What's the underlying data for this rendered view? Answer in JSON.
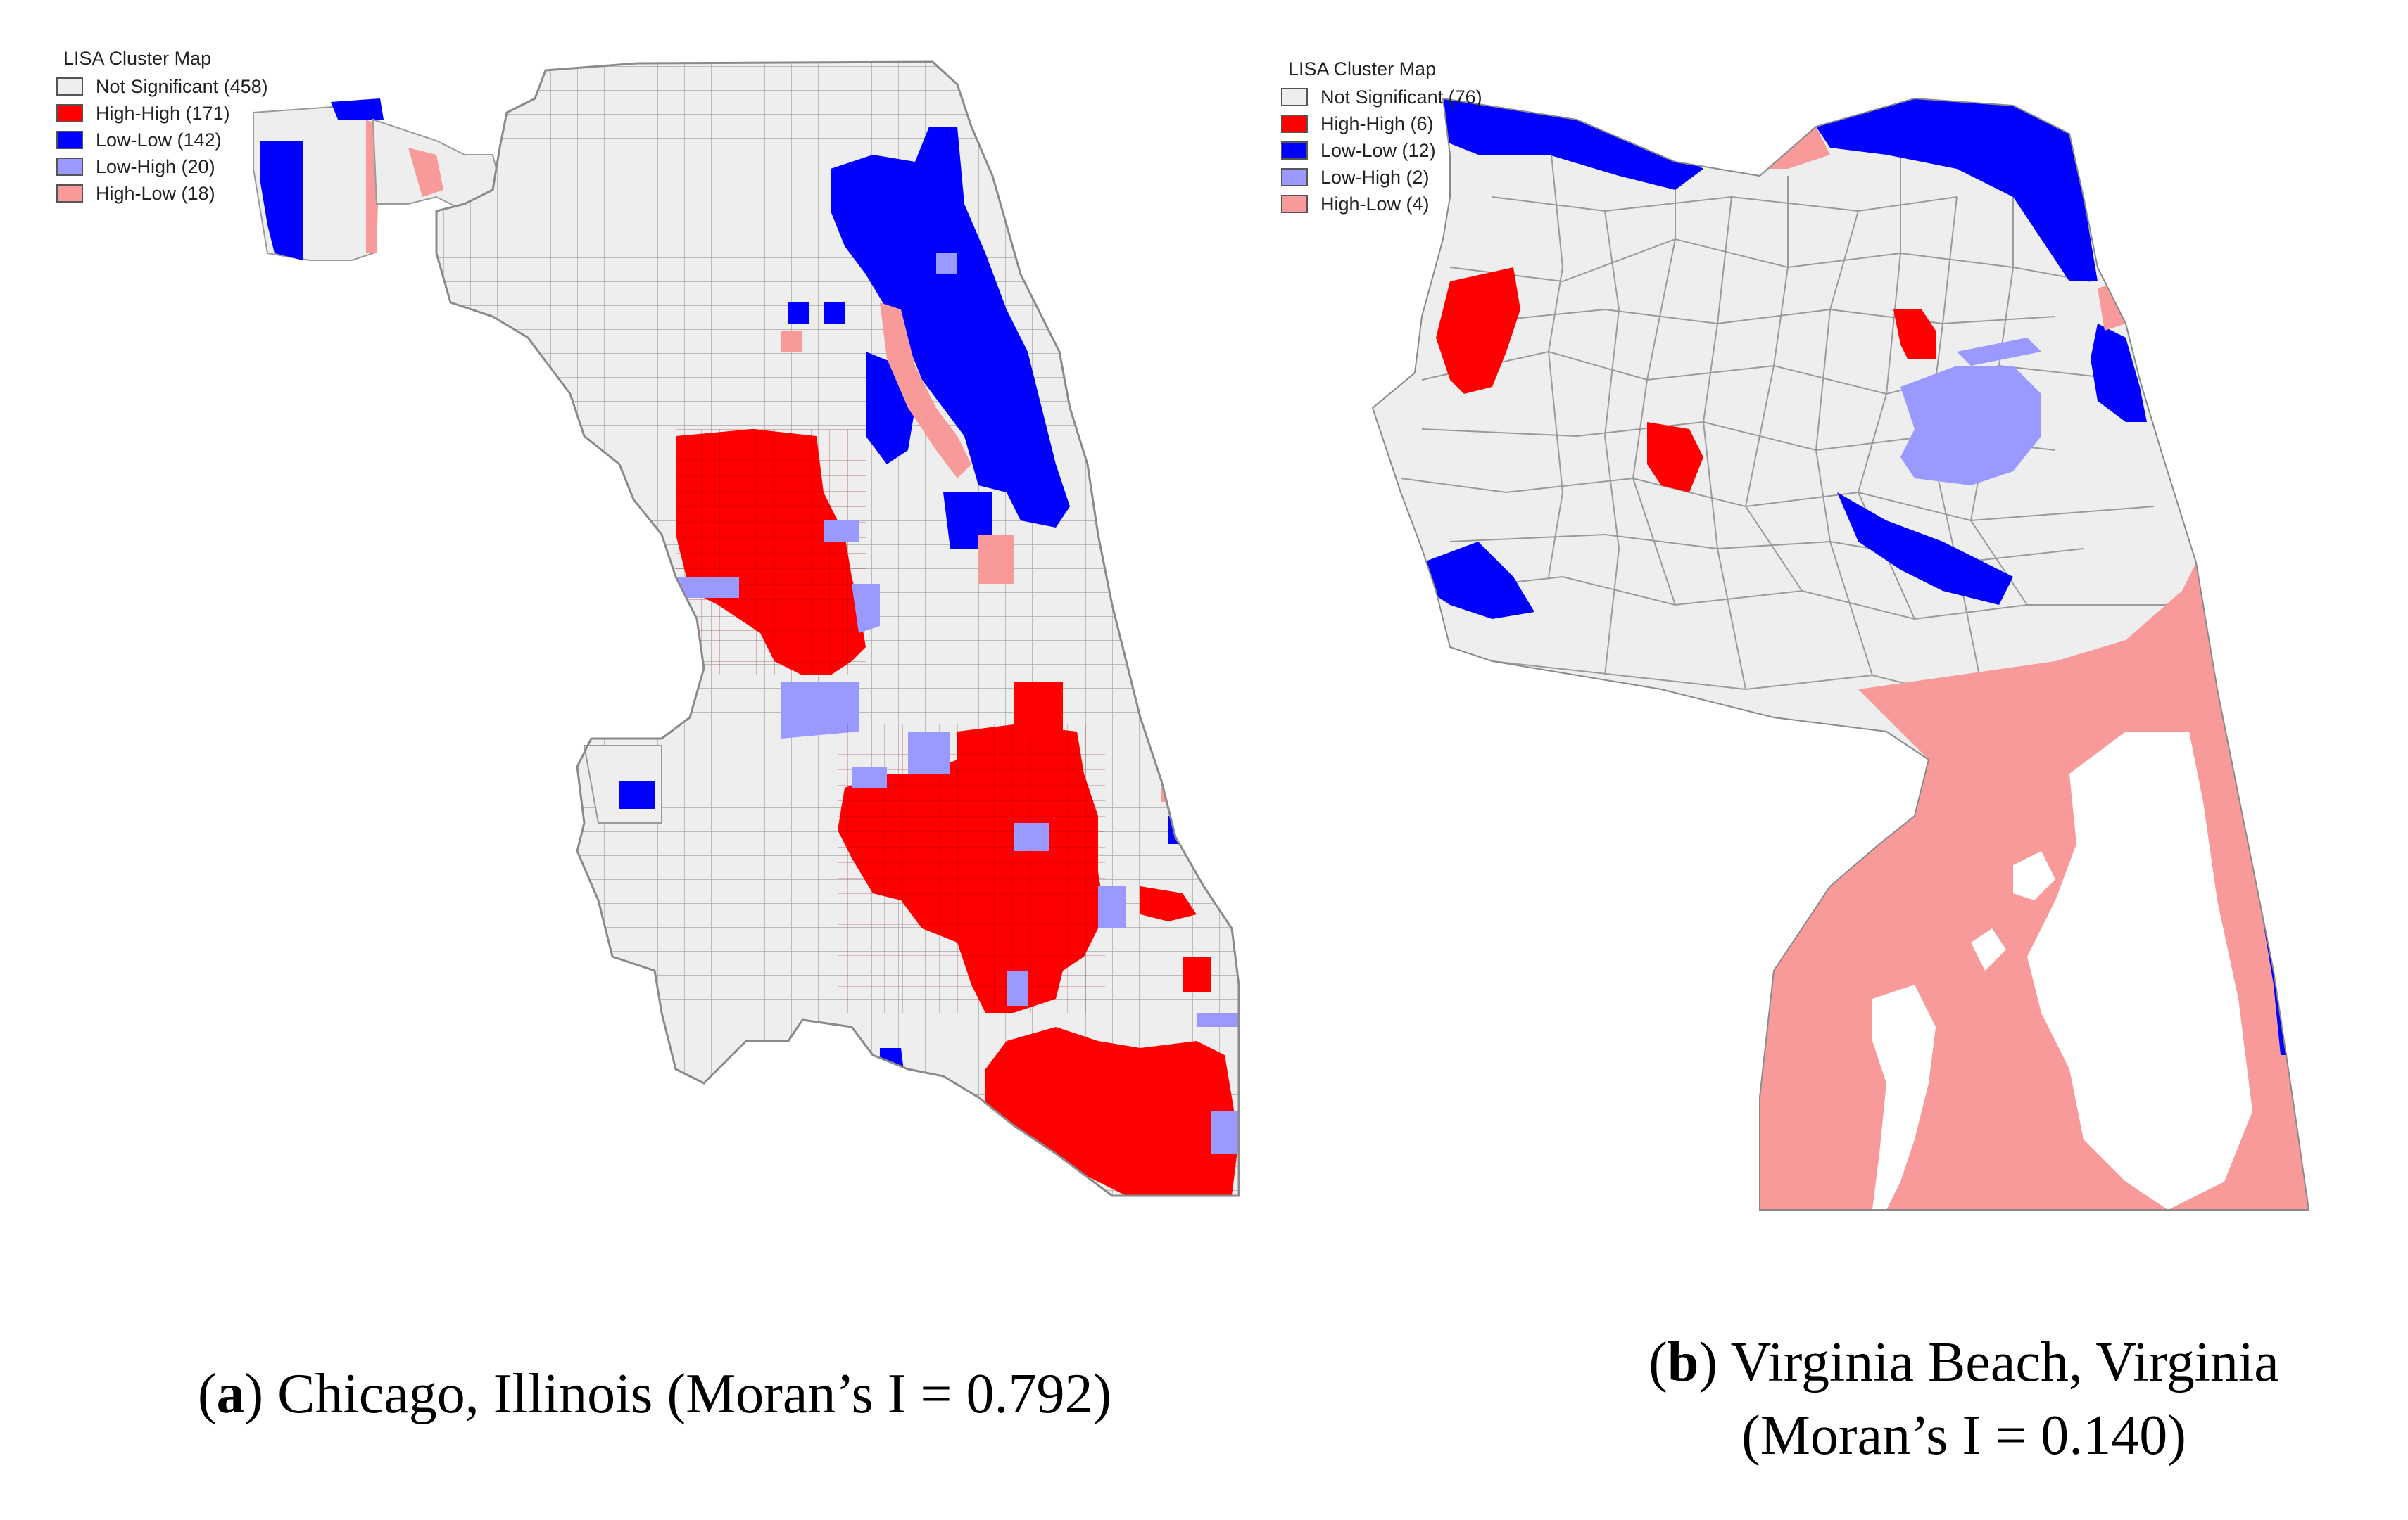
{
  "legend_colors": {
    "not_significant": "#eeeeee",
    "high_high": "#ff0000",
    "low_low": "#0000ff",
    "low_high": "#9999ff",
    "high_low": "#f99a9a"
  },
  "panel_a": {
    "legend_title": "LISA Cluster Map",
    "legend": [
      {
        "key": "not_significant",
        "label": "Not Significant (458)",
        "color": "#eeeeee"
      },
      {
        "key": "high_high",
        "label": "High-High (171)",
        "color": "#ff0000"
      },
      {
        "key": "low_low",
        "label": "Low-Low (142)",
        "color": "#0000ff"
      },
      {
        "key": "low_high",
        "label": "Low-High (20)",
        "color": "#9999ff"
      },
      {
        "key": "high_low",
        "label": "High-Low (18)",
        "color": "#f99a9a"
      }
    ],
    "caption_letter": "a",
    "caption_text": "Chicago, Illinois (Moran’s I = 0.792)"
  },
  "panel_b": {
    "legend_title": "LISA Cluster Map",
    "legend": [
      {
        "key": "not_significant",
        "label": "Not Significant (76)",
        "color": "#eeeeee"
      },
      {
        "key": "high_high",
        "label": "High-High (6)",
        "color": "#ff0000"
      },
      {
        "key": "low_low",
        "label": "Low-Low (12)",
        "color": "#0000ff"
      },
      {
        "key": "low_high",
        "label": "Low-High (2)",
        "color": "#9999ff"
      },
      {
        "key": "high_low",
        "label": "High-Low (4)",
        "color": "#f99a9a"
      }
    ],
    "caption_letter": "b",
    "caption_line1": "Virginia Beach, Virginia",
    "caption_line2": "(Moran’s I = 0.140)"
  }
}
